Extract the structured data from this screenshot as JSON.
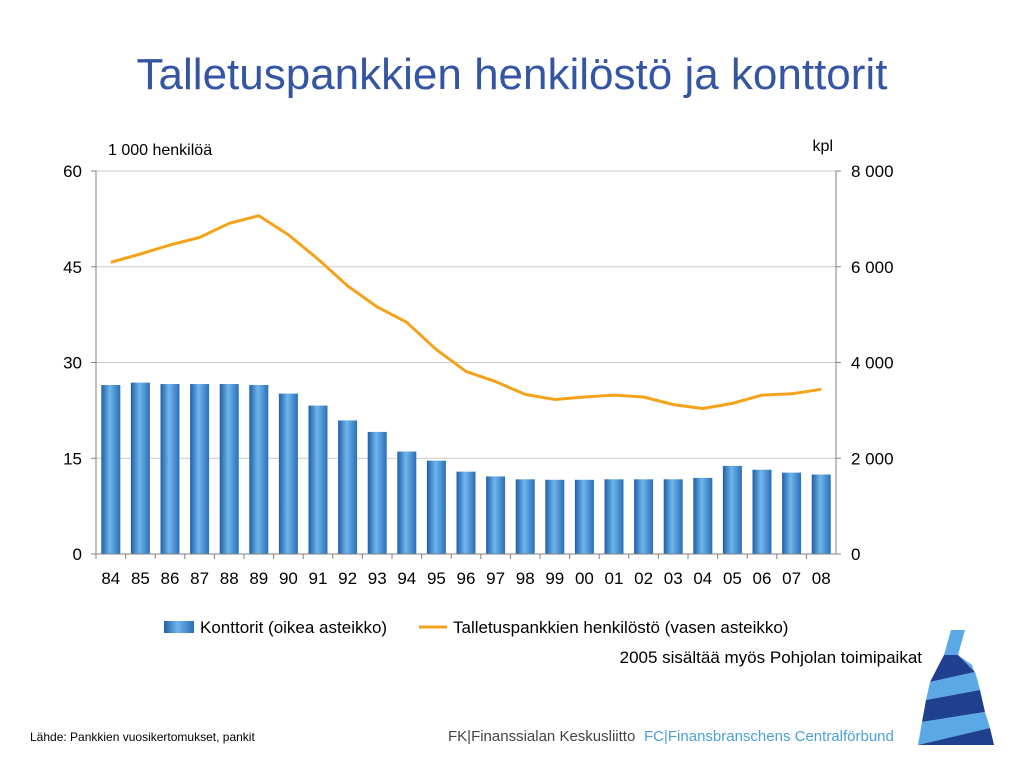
{
  "title": "Talletuspankkien henkilöstö ja konttorit",
  "left_axis_unit": "1 000 henkilöä",
  "right_axis_unit": "kpl",
  "note": "2005 sisältää myös Pohjolan toimipaikat",
  "source": "Lähde: Pankkien vuosikertomukset, pankit",
  "footer": {
    "fk": "FK|Finanssialan Keskusliitto",
    "fc": "FC|Finansbranschens Centralförbund"
  },
  "colors": {
    "title": "#3355a3",
    "bar": "#3a86c8",
    "line": "#f5a21b",
    "grid": "#c8c8c8",
    "logo_dark": "#1f3f8f",
    "logo_light": "#5aa9e6",
    "footer_blue": "#4a9fd8"
  },
  "chart_data": {
    "type": "bar+line",
    "categories": [
      "84",
      "85",
      "86",
      "87",
      "88",
      "89",
      "90",
      "91",
      "92",
      "93",
      "94",
      "95",
      "96",
      "97",
      "98",
      "99",
      "00",
      "01",
      "02",
      "03",
      "04",
      "05",
      "06",
      "07",
      "08"
    ],
    "left_axis": {
      "ticks": [
        "0",
        "15",
        "30",
        "45",
        "60"
      ],
      "range": [
        0,
        60
      ]
    },
    "right_axis": {
      "ticks": [
        "0",
        "2 000",
        "4 000",
        "6 000",
        "8 000"
      ],
      "range": [
        0,
        8000
      ]
    },
    "grid": true,
    "legend_position": "bottom",
    "series": [
      {
        "name": "Konttorit (oikea asteikko)",
        "type": "bar",
        "axis": "right",
        "values": [
          3530,
          3580,
          3550,
          3550,
          3550,
          3530,
          3350,
          3100,
          2790,
          2550,
          2140,
          1950,
          1720,
          1620,
          1560,
          1550,
          1550,
          1560,
          1560,
          1560,
          1590,
          1840,
          1760,
          1700,
          1660
        ]
      },
      {
        "name": "Talletuspankkien henkilöstö (vasen asteikko)",
        "type": "line",
        "axis": "left",
        "values": [
          45.7,
          47.0,
          48.4,
          49.6,
          51.8,
          53.0,
          50.0,
          46.2,
          42.0,
          38.7,
          36.3,
          32.0,
          28.6,
          27.0,
          25.0,
          24.2,
          24.6,
          24.9,
          24.6,
          23.4,
          22.8,
          23.6,
          24.9,
          25.1,
          25.8
        ]
      }
    ]
  }
}
